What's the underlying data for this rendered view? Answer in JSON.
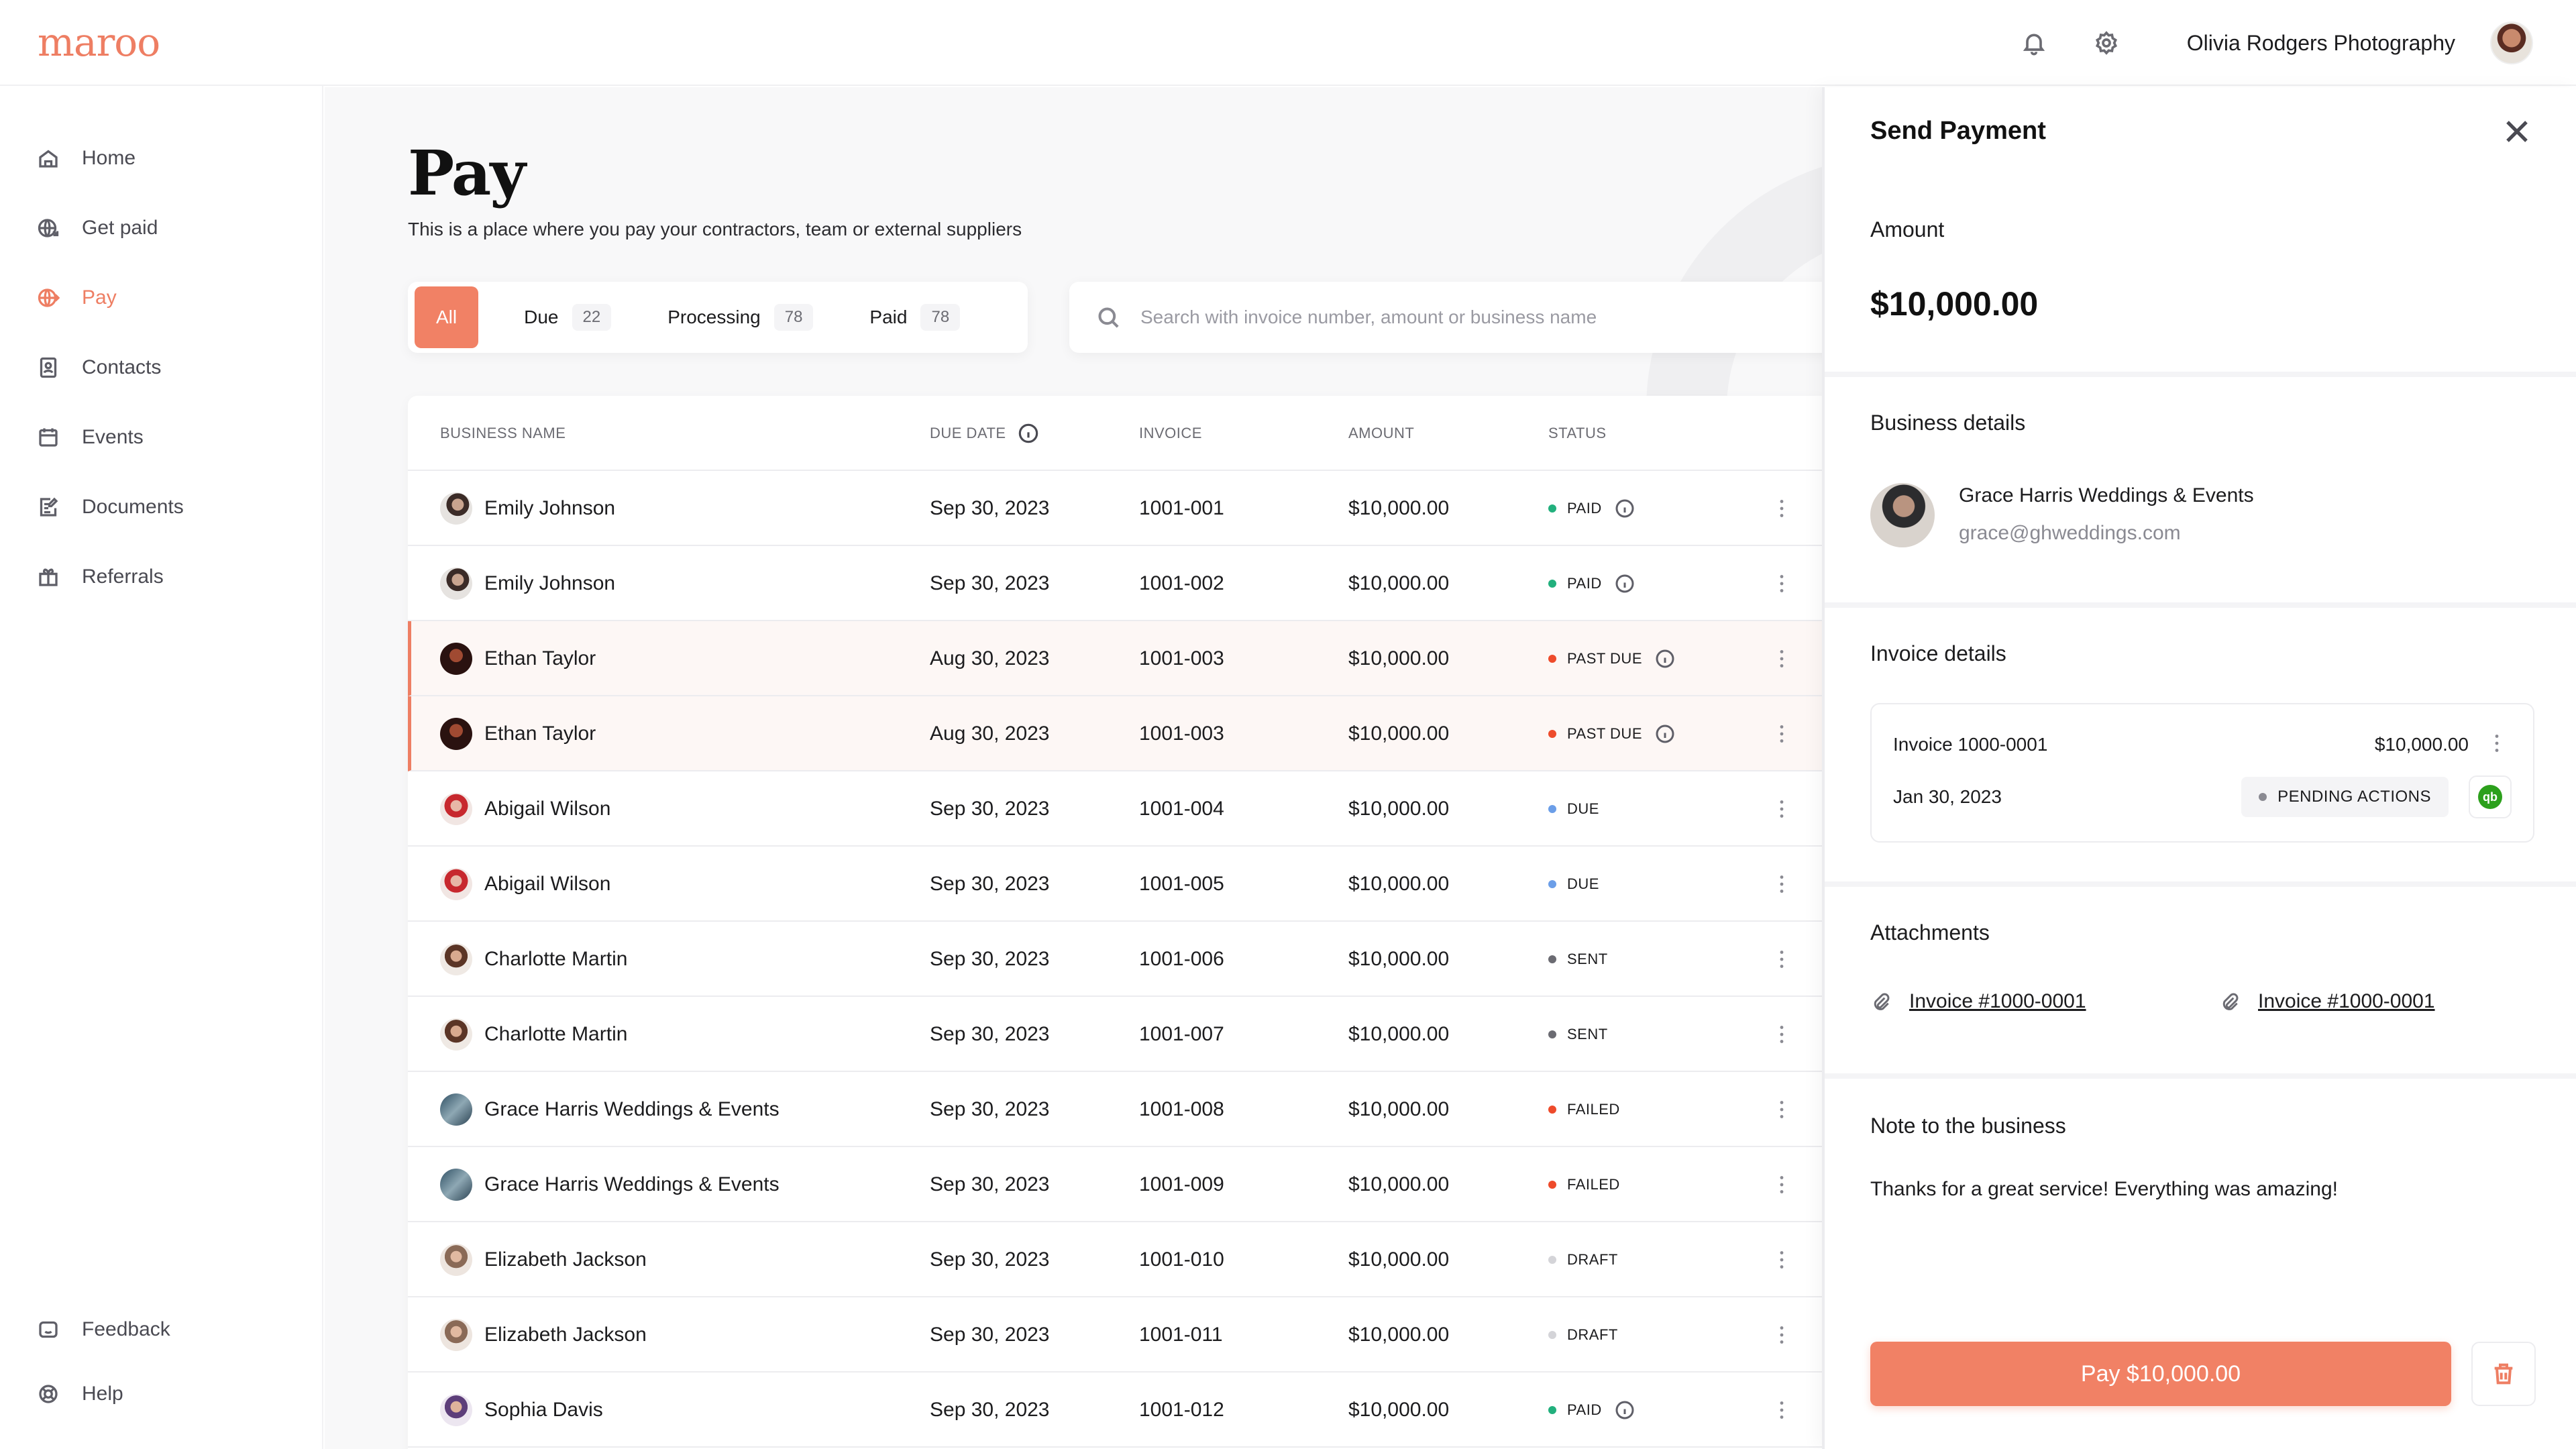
{
  "app": {
    "logo": "maroo",
    "org_name": "Olivia Rodgers Photography"
  },
  "colors": {
    "accent": "#f18165",
    "paid": "#22b07d",
    "past_due": "#ee4b2b",
    "due": "#6b9ee8",
    "sent": "#6b6b72",
    "failed": "#ee4b2b",
    "draft": "#d4d4d8",
    "pending": "#8a8a92"
  },
  "sidebar": {
    "items": [
      {
        "label": "Home",
        "icon": "home-icon"
      },
      {
        "label": "Get paid",
        "icon": "globe-arrow-icon"
      },
      {
        "label": "Pay",
        "icon": "globe-send-icon"
      },
      {
        "label": "Contacts",
        "icon": "contacts-icon"
      },
      {
        "label": "Events",
        "icon": "calendar-icon"
      },
      {
        "label": "Documents",
        "icon": "document-edit-icon"
      },
      {
        "label": "Referrals",
        "icon": "gift-icon"
      }
    ],
    "bottom": [
      {
        "label": "Feedback",
        "icon": "feedback-icon"
      },
      {
        "label": "Help",
        "icon": "help-icon"
      }
    ]
  },
  "page": {
    "title": "Pay",
    "subtitle": "This is a place where you pay your contractors, team or external suppliers"
  },
  "filters": [
    {
      "label": "All",
      "count": ""
    },
    {
      "label": "Due",
      "count": "22"
    },
    {
      "label": "Processing",
      "count": "78"
    },
    {
      "label": "Paid",
      "count": "78"
    }
  ],
  "search": {
    "placeholder": "Search with invoice number, amount or business name",
    "value": ""
  },
  "table": {
    "headers": {
      "business": "BUSINESS NAME",
      "due": "DUE DATE",
      "invoice": "INVOICE",
      "amount": "AMOUNT",
      "status": "STATUS"
    },
    "rows": [
      {
        "name": "Emily Johnson",
        "date": "Sep 30, 2023",
        "invoice": "1001-001",
        "amount": "$10,000.00",
        "status": "PAID"
      },
      {
        "name": "Emily Johnson",
        "date": "Sep 30, 2023",
        "invoice": "1001-002",
        "amount": "$10,000.00",
        "status": "PAID"
      },
      {
        "name": "Ethan Taylor",
        "date": "Aug 30, 2023",
        "invoice": "1001-003",
        "amount": "$10,000.00",
        "status": "PAST DUE"
      },
      {
        "name": "Ethan Taylor",
        "date": "Aug 30, 2023",
        "invoice": "1001-003",
        "amount": "$10,000.00",
        "status": "PAST DUE"
      },
      {
        "name": "Abigail Wilson",
        "date": "Sep 30, 2023",
        "invoice": "1001-004",
        "amount": "$10,000.00",
        "status": "DUE"
      },
      {
        "name": "Abigail Wilson",
        "date": "Sep 30, 2023",
        "invoice": "1001-005",
        "amount": "$10,000.00",
        "status": "DUE"
      },
      {
        "name": "Charlotte Martin",
        "date": "Sep 30, 2023",
        "invoice": "1001-006",
        "amount": "$10,000.00",
        "status": "SENT"
      },
      {
        "name": "Charlotte Martin",
        "date": "Sep 30, 2023",
        "invoice": "1001-007",
        "amount": "$10,000.00",
        "status": "SENT"
      },
      {
        "name": "Grace Harris Weddings & Events",
        "date": "Sep 30, 2023",
        "invoice": "1001-008",
        "amount": "$10,000.00",
        "status": "FAILED"
      },
      {
        "name": "Grace Harris Weddings & Events",
        "date": "Sep 30, 2023",
        "invoice": "1001-009",
        "amount": "$10,000.00",
        "status": "FAILED"
      },
      {
        "name": "Elizabeth Jackson",
        "date": "Sep 30, 2023",
        "invoice": "1001-010",
        "amount": "$10,000.00",
        "status": "DRAFT"
      },
      {
        "name": "Elizabeth Jackson",
        "date": "Sep 30, 2023",
        "invoice": "1001-011",
        "amount": "$10,000.00",
        "status": "DRAFT"
      },
      {
        "name": "Sophia Davis",
        "date": "Sep 30, 2023",
        "invoice": "1001-012",
        "amount": "$10,000.00",
        "status": "PAID"
      }
    ]
  },
  "panel": {
    "title": "Send Payment",
    "amount_label": "Amount",
    "amount": "$10,000.00",
    "business_label": "Business details",
    "business_name": "Grace Harris Weddings & Events",
    "business_email": "grace@ghweddings.com",
    "invoice_label": "Invoice details",
    "invoice_title": "Invoice 1000-0001",
    "invoice_amount": "$10,000.00",
    "invoice_date": "Jan 30, 2023",
    "invoice_status": "PENDING ACTIONS",
    "quickbooks": "qb",
    "attachments_label": "Attachments",
    "attachments": [
      "Invoice #1000-0001",
      "Invoice #1000-0001"
    ],
    "note_label": "Note to the business",
    "note": "Thanks for a great service! Everything was amazing!",
    "pay_button": "Pay $10,000.00"
  }
}
